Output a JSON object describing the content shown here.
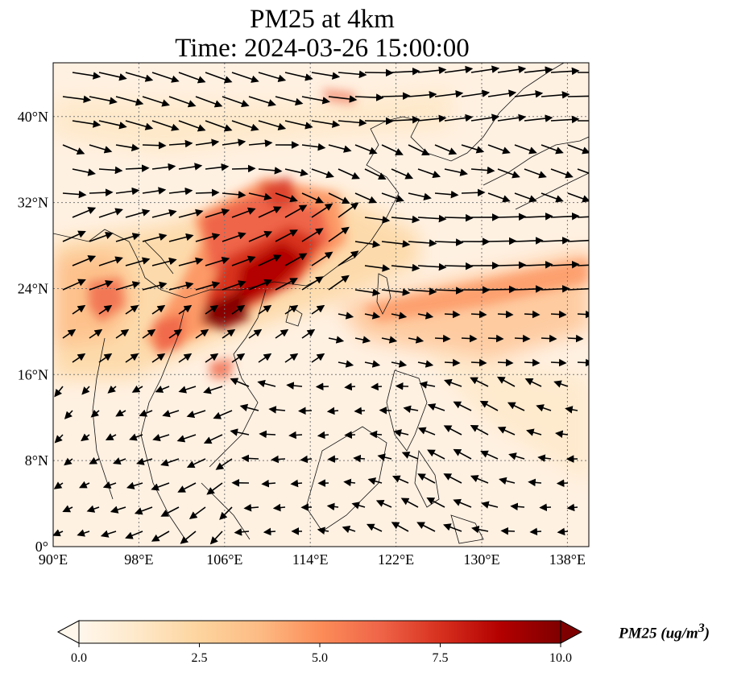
{
  "title": {
    "line1": "PM25 at 4km",
    "line2": "Time: 2024-03-26 15:00:00"
  },
  "map": {
    "projection": "PlateCarree",
    "lon_range": [
      90,
      140
    ],
    "lat_range": [
      0,
      45
    ],
    "gridlines": "dotted",
    "lon_ticks": [
      {
        "value": 90,
        "label": "90°E"
      },
      {
        "value": 98,
        "label": "98°E"
      },
      {
        "value": 106,
        "label": "106°E"
      },
      {
        "value": 114,
        "label": "114°E"
      },
      {
        "value": 122,
        "label": "122°E"
      },
      {
        "value": 130,
        "label": "130°E"
      },
      {
        "value": 138,
        "label": "138°E"
      }
    ],
    "lat_ticks": [
      {
        "value": 0,
        "label": "0°"
      },
      {
        "value": 8,
        "label": "8°N"
      },
      {
        "value": 16,
        "label": "16°N"
      },
      {
        "value": 24,
        "label": "24°N"
      },
      {
        "value": 32,
        "label": "32°N"
      },
      {
        "value": 40,
        "label": "40°N"
      }
    ]
  },
  "colorbar": {
    "colormap": "OrRd",
    "range": [
      0,
      10
    ],
    "extend": "both",
    "ticks": [
      "0.0",
      "2.5",
      "5.0",
      "7.5",
      "10.0"
    ],
    "label_text": "PM25 (ug/m",
    "label_sup": "3",
    "label_close": ")",
    "colors": [
      "#fff7ec",
      "#fee8c8",
      "#fdd49e",
      "#fdbb84",
      "#fc8d59",
      "#ef6548",
      "#d7301f",
      "#b30000",
      "#7f0000"
    ]
  }
}
